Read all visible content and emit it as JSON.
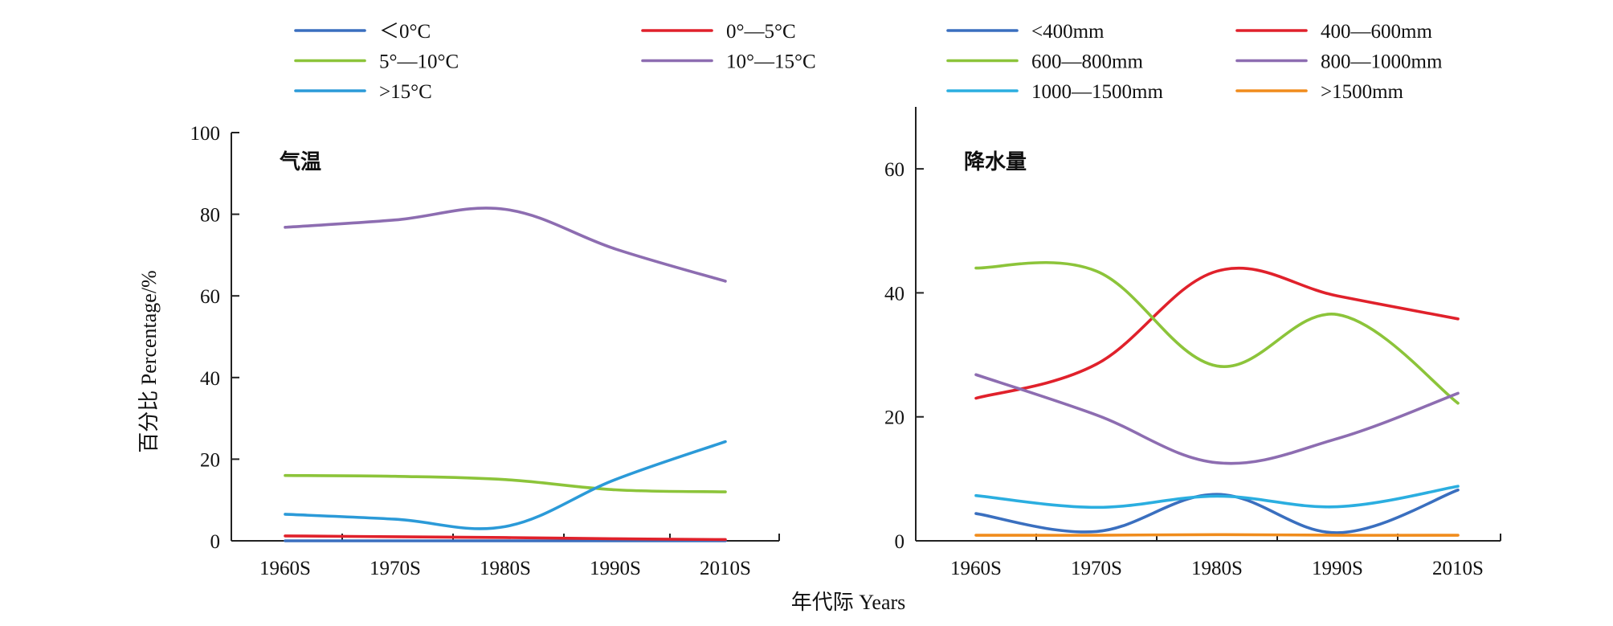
{
  "figure": {
    "ylabel": "百分比 Percentage/%",
    "xlabel": "年代际 Years"
  },
  "chart_data": [
    {
      "type": "line",
      "title": "气温",
      "xlabel": "年代际 Years",
      "ylabel": "百分比 Percentage/%",
      "categories": [
        "1960S",
        "1970S",
        "1980S",
        "1990S",
        "2010S"
      ],
      "ylim": [
        0,
        100
      ],
      "yticks": [
        0,
        20,
        40,
        60,
        80,
        100
      ],
      "grid": false,
      "legend_position": "top",
      "series": [
        {
          "name": "＜0°C",
          "color": "#3a6fbf",
          "values": [
            0,
            0,
            0,
            0,
            0
          ]
        },
        {
          "name": "0°—5°C",
          "color": "#e0212b",
          "values": [
            1.2,
            1.0,
            0.8,
            0.5,
            0.3
          ]
        },
        {
          "name": "5°—10°C",
          "color": "#8cc43a",
          "values": [
            16,
            15.8,
            15,
            12.5,
            12
          ]
        },
        {
          "name": "10°—15°C",
          "color": "#8d6db1",
          "values": [
            76.8,
            78.6,
            81.2,
            71.5,
            63.6
          ]
        },
        {
          "name": ">15°C",
          "color": "#2b9ad8",
          "values": [
            6.5,
            5.3,
            3.5,
            15,
            24.3
          ]
        }
      ]
    },
    {
      "type": "line",
      "title": "降水量",
      "xlabel": "年代际 Years",
      "ylabel": "",
      "categories": [
        "1960S",
        "1970S",
        "1980S",
        "1990S",
        "2010S"
      ],
      "ylim": [
        0,
        70
      ],
      "yticks": [
        0,
        20,
        40,
        60
      ],
      "grid": false,
      "legend_position": "top",
      "series": [
        {
          "name": "<400mm",
          "color": "#3a6fbf",
          "values": [
            4.4,
            1.5,
            7.5,
            1.3,
            8.2
          ]
        },
        {
          "name": "400—600mm",
          "color": "#e0212b",
          "values": [
            23,
            28.5,
            43.5,
            39.5,
            35.8
          ]
        },
        {
          "name": "600—800mm",
          "color": "#8cc43a",
          "values": [
            44,
            43.5,
            28.2,
            36.5,
            22.2
          ]
        },
        {
          "name": "800—1000mm",
          "color": "#8d6db1",
          "values": [
            26.8,
            20.3,
            12.6,
            16.5,
            23.8
          ]
        },
        {
          "name": "1000—1500mm",
          "color": "#2baee0",
          "values": [
            7.3,
            5.4,
            7.2,
            5.5,
            8.8
          ]
        },
        {
          "name": ">1500mm",
          "color": "#f08c1c",
          "values": [
            0.9,
            0.9,
            1.0,
            0.9,
            0.9
          ]
        }
      ]
    }
  ]
}
